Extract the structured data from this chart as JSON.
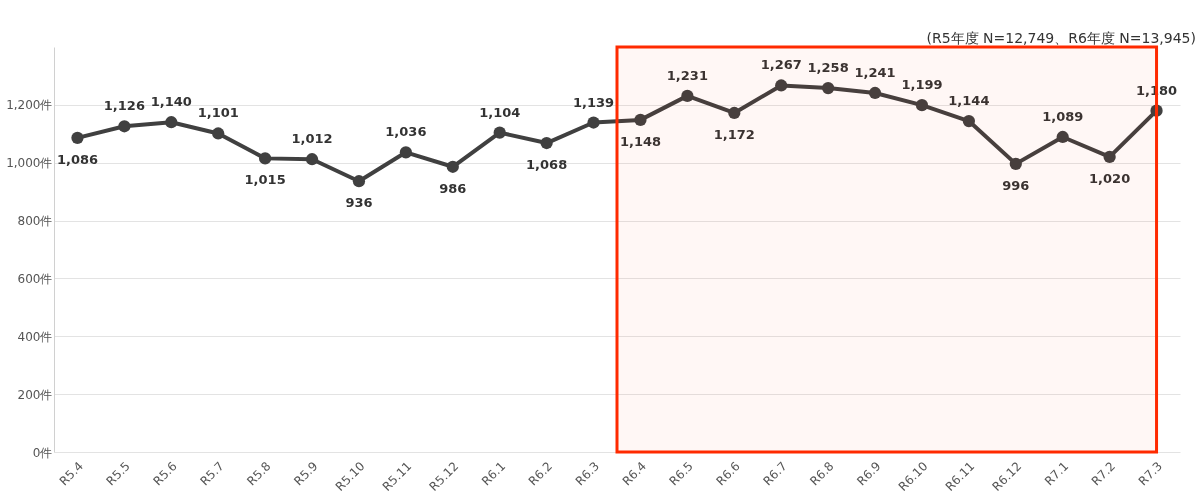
{
  "chart_data": {
    "type": "line",
    "categories": [
      "R5.4",
      "R5.5",
      "R5.6",
      "R5.7",
      "R5.8",
      "R5.9",
      "R5.10",
      "R5.11",
      "R5.12",
      "R6.1",
      "R6.2",
      "R6.3",
      "R6.4",
      "R6.5",
      "R6.6",
      "R6.7",
      "R6.8",
      "R6.9",
      "R6.10",
      "R6.11",
      "R6.12",
      "R7.1",
      "R7.2",
      "R7.3"
    ],
    "series": [
      {
        "color": "#404040",
        "values": [
          1086,
          1126,
          1140,
          1101,
          1015,
          1012,
          936,
          1036,
          986,
          1104,
          1068,
          1139,
          1148,
          1231,
          1172,
          1267,
          1258,
          1241,
          1199,
          1144,
          996,
          1089,
          1020,
          1180
        ],
        "value_labels": [
          "1,086",
          "1,126",
          "1,140",
          "1,101",
          "1,015",
          "1,012",
          "936",
          "1,036",
          "986",
          "1,104",
          "1,068",
          "1,139",
          "1,148",
          "1,231",
          "1,172",
          "1,267",
          "1,258",
          "1,241",
          "1,199",
          "1,144",
          "996",
          "1,089",
          "1,020",
          "1,180"
        ]
      }
    ],
    "ylim": [
      0,
      1400
    ],
    "yticks": [
      {
        "value": 0,
        "label": "0件"
      },
      {
        "value": 200,
        "label": "200件"
      },
      {
        "value": 400,
        "label": "400件"
      },
      {
        "value": 600,
        "label": "600件"
      },
      {
        "value": 800,
        "label": "800件"
      },
      {
        "value": 1000,
        "label": "1,000件"
      },
      {
        "value": 1200,
        "label": "1,200件"
      }
    ],
    "grid": "y",
    "marker": "circle",
    "line_style": "solid",
    "bands": [
      {
        "axis": "x",
        "from": "R6.4",
        "to": "R7.3",
        "color": "#ff2a00"
      }
    ],
    "annotations": [
      "(R5年度 N=12,749、R6年度 N=13,945)"
    ]
  }
}
